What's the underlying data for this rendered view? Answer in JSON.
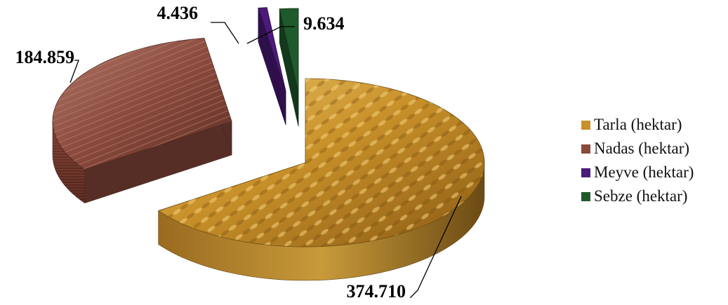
{
  "chart_data": {
    "type": "pie",
    "style": "3d-exploded",
    "series": [
      {
        "name": "Tarla (hektar)",
        "value": 374710,
        "label": "374.710",
        "color": "#c9912a"
      },
      {
        "name": "Nadas (hektar)",
        "value": 184859,
        "label": "184.859",
        "color": "#8a4a3c"
      },
      {
        "name": "Meyve (hektar)",
        "value": 4436,
        "label": "4.436",
        "color": "#4b1a7a"
      },
      {
        "name": "Sebze (hektar)",
        "value": 9634,
        "label": "9.634",
        "color": "#1f5a2c"
      }
    ],
    "legend_position": "right"
  }
}
